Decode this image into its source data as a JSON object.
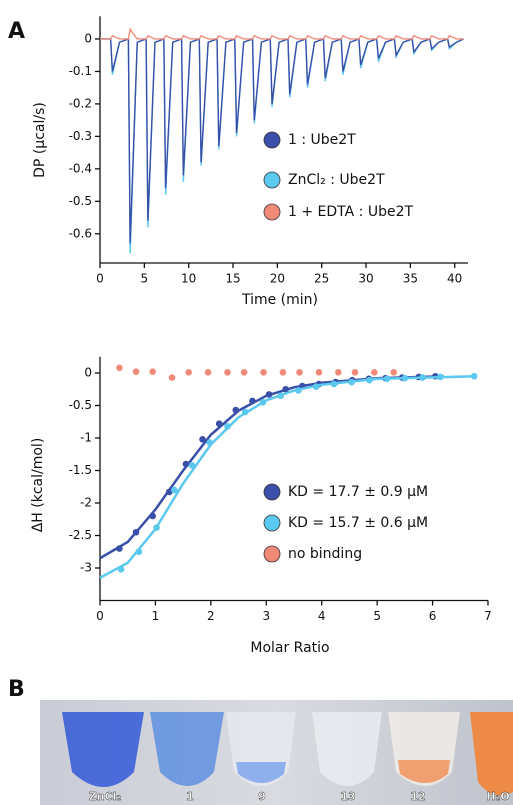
{
  "panel_labels": [
    "A",
    "B"
  ],
  "chart_data": [
    {
      "type": "line",
      "ylabel": "DP (μcal/s)",
      "xlabel": "Time (min)",
      "xlim": [
        0,
        41.5
      ],
      "xticks": [
        0,
        5,
        10,
        15,
        20,
        25,
        30,
        35,
        40
      ],
      "ylim": [
        -0.69,
        0.07
      ],
      "yticks": [
        0,
        -0.1,
        -0.2,
        -0.3,
        -0.4,
        -0.5,
        -0.6
      ],
      "x": [
        0,
        1.2,
        1.4,
        2.2,
        3.2,
        3.4,
        4.2,
        5.2,
        5.4,
        6.2,
        7.2,
        7.4,
        8.2,
        9.2,
        9.4,
        10.2,
        11.2,
        11.4,
        12.2,
        13.2,
        13.4,
        14.2,
        15.2,
        15.4,
        16.2,
        17.2,
        17.4,
        18.2,
        19.2,
        19.4,
        20.2,
        21.2,
        21.4,
        22.2,
        23.2,
        23.4,
        24.2,
        25.2,
        25.4,
        26.2,
        27.2,
        27.4,
        28.2,
        29.2,
        29.4,
        30.2,
        31.2,
        31.4,
        32.2,
        33.2,
        33.4,
        34.2,
        35.2,
        35.4,
        36.2,
        37.2,
        37.4,
        38.2,
        39.2,
        39.4,
        40.2,
        41
      ],
      "series": [
        {
          "name": "ZnCl₂ : Ube2T",
          "color": "#5bc8ef",
          "values": [
            0,
            0,
            -0.11,
            -0.01,
            0,
            -0.66,
            -0.01,
            0,
            -0.58,
            -0.01,
            0,
            -0.48,
            -0.01,
            0,
            -0.44,
            -0.01,
            0,
            -0.39,
            -0.01,
            0,
            -0.34,
            -0.01,
            0,
            -0.3,
            -0.01,
            0,
            -0.26,
            -0.01,
            0,
            -0.21,
            -0.01,
            0,
            -0.18,
            -0.01,
            0,
            -0.15,
            -0.01,
            0,
            -0.13,
            -0.01,
            0,
            -0.11,
            -0.01,
            0,
            -0.09,
            -0.01,
            0,
            -0.07,
            -0.01,
            0,
            -0.055,
            -0.01,
            0,
            -0.045,
            -0.01,
            0,
            -0.035,
            -0.01,
            0,
            -0.03,
            -0.01,
            0
          ]
        },
        {
          "name": "1 : Ube2T",
          "color": "#3a4fa8",
          "values": [
            0,
            0,
            -0.1,
            -0.01,
            0,
            -0.63,
            -0.01,
            0,
            -0.56,
            -0.01,
            0,
            -0.46,
            -0.01,
            0,
            -0.42,
            -0.01,
            0,
            -0.38,
            -0.01,
            0,
            -0.33,
            -0.01,
            0,
            -0.29,
            -0.01,
            0,
            -0.25,
            -0.01,
            0,
            -0.2,
            -0.01,
            0,
            -0.17,
            -0.01,
            0,
            -0.14,
            -0.01,
            0,
            -0.12,
            -0.01,
            0,
            -0.1,
            -0.01,
            0,
            -0.08,
            -0.01,
            0,
            -0.06,
            -0.01,
            0,
            -0.05,
            -0.01,
            0,
            -0.04,
            -0.01,
            0,
            -0.03,
            -0.01,
            0,
            -0.025,
            -0.01,
            0
          ]
        },
        {
          "name": "1 + EDTA : Ube2T",
          "color": "#f28a78",
          "values": [
            0,
            0,
            0.01,
            0,
            0,
            0.03,
            0,
            0,
            0.01,
            0,
            0,
            0.01,
            0,
            0,
            0.01,
            0,
            0,
            0.01,
            0,
            0,
            0.01,
            0,
            0,
            0.01,
            0,
            0,
            0.01,
            0,
            0,
            0.01,
            0,
            0,
            0.01,
            0,
            0,
            0.01,
            0,
            0,
            0.01,
            0,
            0,
            0.01,
            0,
            0,
            0.01,
            0,
            0,
            0.01,
            0,
            0,
            0.01,
            0,
            0,
            0.01,
            0,
            0,
            0.01,
            0,
            0,
            0.01,
            0,
            0
          ]
        }
      ]
    },
    {
      "type": "scatter",
      "ylabel": "ΔH (kcal/mol)",
      "xlabel": "Molar Ratio",
      "xlim": [
        0,
        7
      ],
      "xticks": [
        0,
        1,
        2,
        3,
        4,
        5,
        6,
        7
      ],
      "ylim": [
        -3.5,
        0.25
      ],
      "yticks": [
        0,
        -0.5,
        -1,
        -1.5,
        -2,
        -2.5,
        -3
      ],
      "series": [
        {
          "name": "KD = 17.7 ± 0.9 μM",
          "color": "#3a4fa8",
          "x": [
            0.35,
            0.65,
            0.95,
            1.25,
            1.55,
            1.85,
            2.15,
            2.45,
            2.75,
            3.05,
            3.35,
            3.65,
            3.95,
            4.25,
            4.55,
            4.85,
            5.15,
            5.45,
            5.75,
            6.05
          ],
          "values": [
            -2.7,
            -2.45,
            -2.2,
            -1.83,
            -1.4,
            -1.02,
            -0.78,
            -0.57,
            -0.43,
            -0.33,
            -0.25,
            -0.2,
            -0.17,
            -0.14,
            -0.11,
            -0.09,
            -0.08,
            -0.07,
            -0.06,
            -0.05
          ],
          "fit": {
            "x": [
              0,
              0.5,
              1,
              1.5,
              2,
              2.5,
              3,
              3.5,
              4,
              5,
              6.2
            ],
            "values": [
              -2.85,
              -2.6,
              -2.1,
              -1.5,
              -0.95,
              -0.58,
              -0.35,
              -0.22,
              -0.15,
              -0.08,
              -0.05
            ]
          }
        },
        {
          "name": "KD = 15.7 ± 0.6 μM",
          "color": "#5bc8ef",
          "x": [
            0.38,
            0.7,
            1.02,
            1.34,
            1.66,
            1.98,
            2.3,
            2.62,
            2.94,
            3.26,
            3.58,
            3.9,
            4.22,
            4.54,
            4.86,
            5.18,
            5.5,
            5.82,
            6.14,
            6.75
          ],
          "values": [
            -3.02,
            -2.75,
            -2.38,
            -1.8,
            -1.42,
            -1.07,
            -0.82,
            -0.6,
            -0.45,
            -0.35,
            -0.27,
            -0.21,
            -0.17,
            -0.14,
            -0.11,
            -0.09,
            -0.08,
            -0.07,
            -0.06,
            -0.05
          ],
          "fit": {
            "x": [
              0,
              0.5,
              1,
              1.5,
              2,
              2.5,
              3,
              3.5,
              4,
              5,
              6.8
            ],
            "values": [
              -3.15,
              -2.92,
              -2.4,
              -1.7,
              -1.1,
              -0.68,
              -0.42,
              -0.27,
              -0.18,
              -0.09,
              -0.05
            ]
          }
        },
        {
          "name": "no binding",
          "color": "#f28a78",
          "x": [
            0.35,
            0.65,
            0.95,
            1.3,
            1.6,
            1.95,
            2.3,
            2.6,
            2.95,
            3.3,
            3.6,
            3.95,
            4.3,
            4.6,
            4.95,
            5.3
          ],
          "values": [
            0.08,
            0.02,
            0.02,
            -0.07,
            0.01,
            0.01,
            0.01,
            0.01,
            0.01,
            0.01,
            0.01,
            0.01,
            0.01,
            0.01,
            0.01,
            0.01
          ]
        }
      ]
    }
  ],
  "photo": {
    "labels": [
      "ZnCl₂",
      "1",
      "9",
      "13",
      "12",
      "H₂O"
    ]
  }
}
